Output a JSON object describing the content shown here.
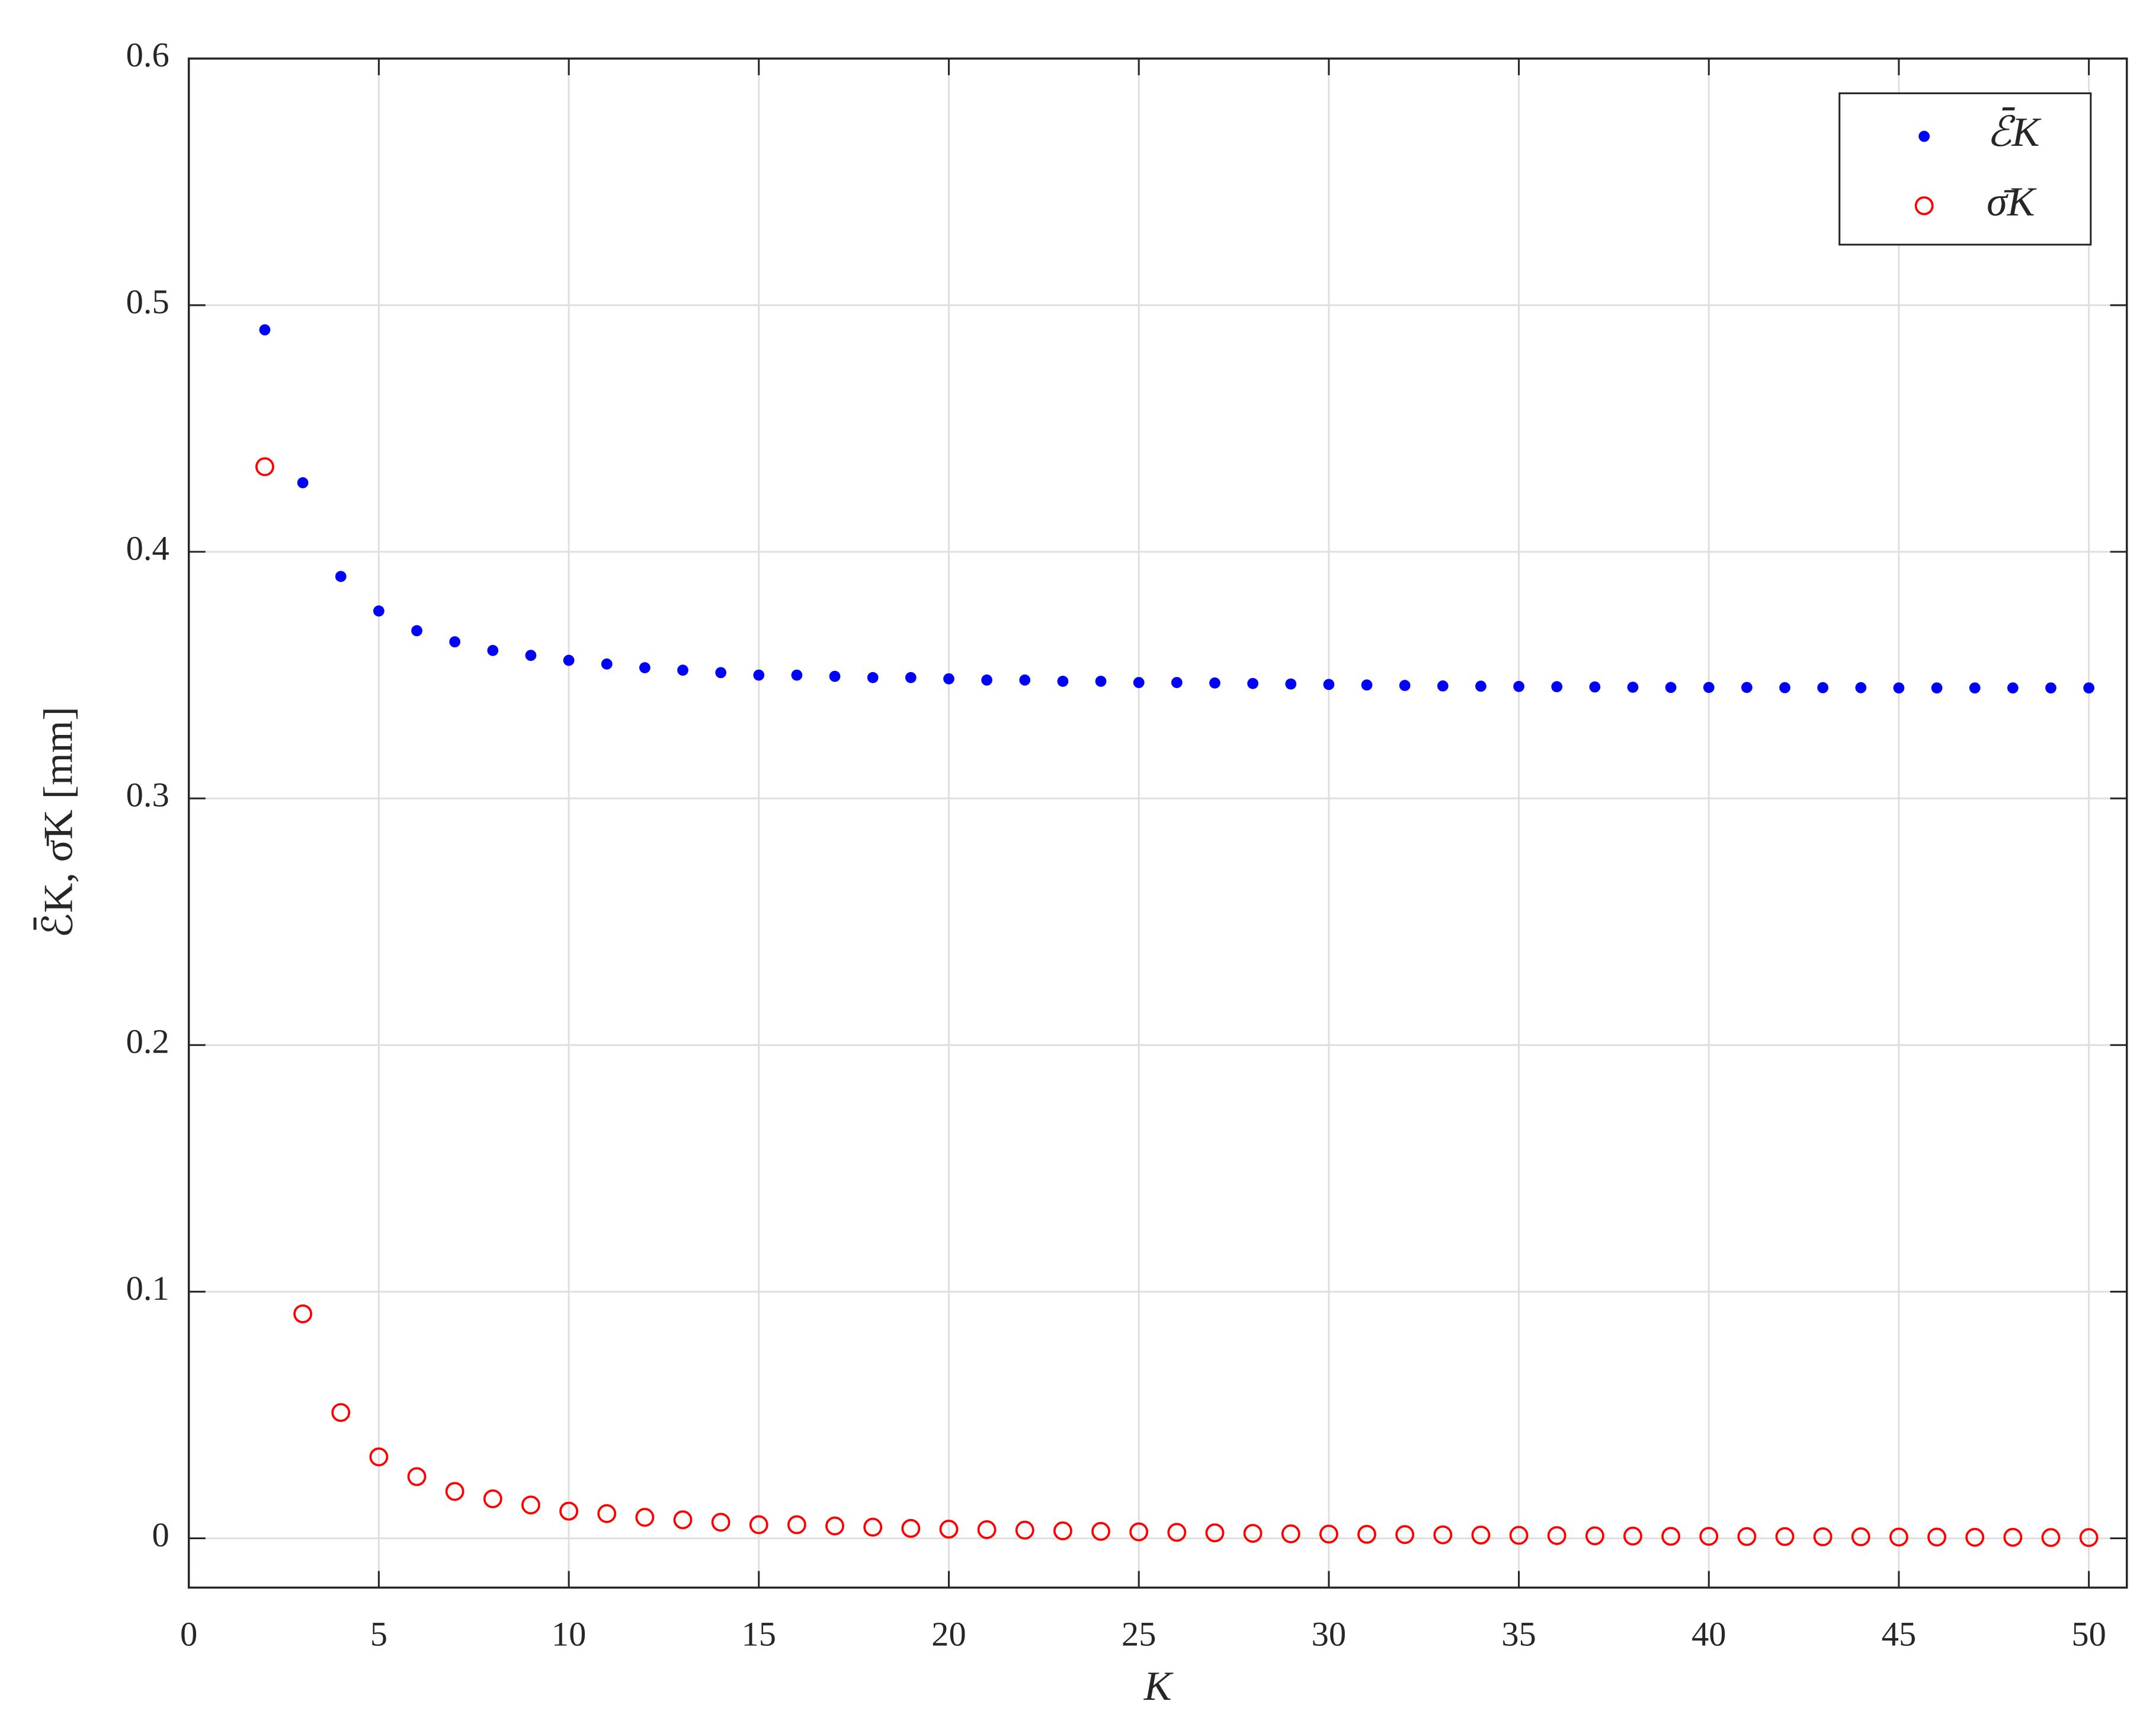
{
  "chart_data": {
    "type": "scatter",
    "xlabel": "K",
    "ylabel": "ℰ̄K, σ̄K [mm]",
    "x": [
      2,
      3,
      4,
      5,
      6,
      7,
      8,
      9,
      10,
      11,
      12,
      13,
      14,
      15,
      16,
      17,
      18,
      19,
      20,
      21,
      22,
      23,
      24,
      25,
      26,
      27,
      28,
      29,
      30,
      31,
      32,
      33,
      34,
      35,
      36,
      37,
      38,
      39,
      40,
      41,
      42,
      43,
      44,
      45,
      46,
      47,
      48,
      49,
      50
    ],
    "series": [
      {
        "name": "ℰ̄K",
        "color": "#0000ff",
        "marker": "filled",
        "values": [
          0.49,
          0.428,
          0.39,
          0.376,
          0.368,
          0.3635,
          0.36,
          0.358,
          0.356,
          0.3545,
          0.353,
          0.352,
          0.351,
          0.35,
          0.35,
          0.3495,
          0.349,
          0.349,
          0.3485,
          0.348,
          0.348,
          0.3475,
          0.3475,
          0.347,
          0.347,
          0.3468,
          0.3466,
          0.3464,
          0.3462,
          0.346,
          0.3458,
          0.3456,
          0.3455,
          0.3454,
          0.3453,
          0.3452,
          0.3451,
          0.345,
          0.345,
          0.345,
          0.3449,
          0.3449,
          0.3449,
          0.3448,
          0.3448,
          0.3448,
          0.3448,
          0.3448,
          0.3448
        ]
      },
      {
        "name": "σ̄K",
        "color": "#ff0000",
        "marker": "open",
        "values": [
          0.4345,
          0.091,
          0.051,
          0.033,
          0.025,
          0.019,
          0.016,
          0.0135,
          0.011,
          0.01,
          0.0085,
          0.0075,
          0.0065,
          0.0055,
          0.0055,
          0.005,
          0.0045,
          0.004,
          0.0037,
          0.0035,
          0.0033,
          0.003,
          0.0028,
          0.0026,
          0.0024,
          0.0022,
          0.002,
          0.0018,
          0.0017,
          0.0016,
          0.0015,
          0.0014,
          0.0013,
          0.0012,
          0.0011,
          0.001,
          0.0009,
          0.0008,
          0.0008,
          0.0007,
          0.0007,
          0.0006,
          0.0006,
          0.0005,
          0.0005,
          0.0004,
          0.0004,
          0.0003,
          0.0003
        ]
      }
    ],
    "xlim": [
      0,
      51
    ],
    "ylim": [
      -0.02,
      0.6
    ],
    "xticks": [
      0,
      5,
      10,
      15,
      20,
      25,
      30,
      35,
      40,
      45,
      50
    ],
    "yticks": [
      0,
      0.1,
      0.2,
      0.3,
      0.4,
      0.5,
      0.6
    ],
    "grid": true,
    "legend": "upper right"
  }
}
